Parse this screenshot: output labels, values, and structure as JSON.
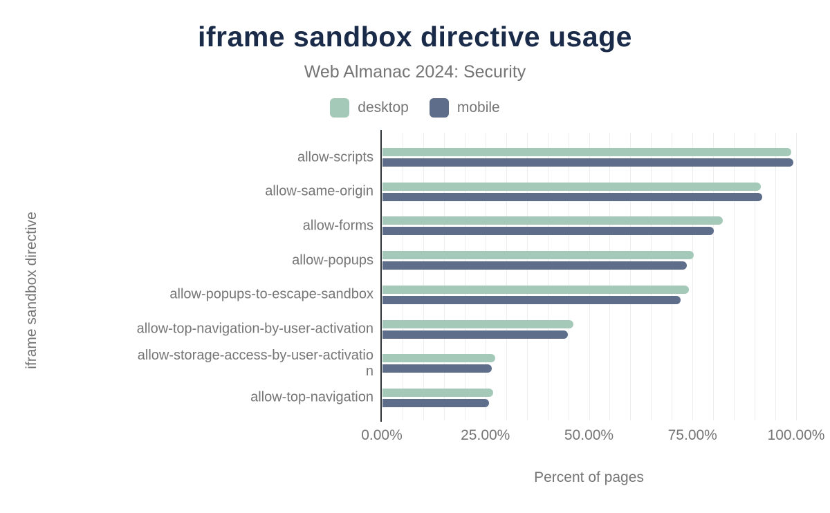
{
  "header": {
    "title": "iframe sandbox directive usage",
    "subtitle": "Web Almanac 2024: Security"
  },
  "legend": {
    "items": [
      {
        "label": "desktop",
        "color": "#a5c9b8"
      },
      {
        "label": "mobile",
        "color": "#5e6e8a"
      }
    ]
  },
  "axes": {
    "x_title": "Percent of pages",
    "y_title": "iframe sandbox directive"
  },
  "chart_data": {
    "type": "bar",
    "orientation": "horizontal",
    "title": "iframe sandbox directive usage",
    "subtitle": "Web Almanac 2024: Security",
    "xlabel": "Percent of pages",
    "ylabel": "iframe sandbox directive",
    "xlim": [
      0,
      100
    ],
    "x_tick_values": [
      0,
      25,
      50,
      75,
      100
    ],
    "x_tick_labels": [
      "0.00%",
      "25.00%",
      "50.00%",
      "75.00%",
      "100.00%"
    ],
    "grid": {
      "show": true,
      "minor_step_percent": 5,
      "color": "#ededed"
    },
    "legend_position": "top",
    "categories": [
      "allow-scripts",
      "allow-same-origin",
      "allow-forms",
      "allow-popups",
      "allow-popups-to-escape-sandbox",
      "allow-top-navigation-by-user-activation",
      "allow-storage-access-by-user-activation",
      "allow-top-navigation"
    ],
    "category_display_lines": [
      [
        "allow-scripts"
      ],
      [
        "allow-same-origin"
      ],
      [
        "allow-forms"
      ],
      [
        "allow-popups"
      ],
      [
        "allow-popups-to-escape-sandbox"
      ],
      [
        "allow-top-navigation-by-user-activation"
      ],
      [
        "allow-storage-access-by-user-activatio",
        "n"
      ],
      [
        "allow-top-navigation"
      ]
    ],
    "series": [
      {
        "name": "desktop",
        "color": "#a5c9b8",
        "values": [
          98.6,
          91.3,
          82.2,
          75.2,
          74.0,
          46.0,
          27.2,
          26.7
        ]
      },
      {
        "name": "mobile",
        "color": "#5e6e8a",
        "values": [
          99.1,
          91.6,
          79.9,
          73.5,
          72.0,
          44.8,
          26.3,
          25.7
        ]
      }
    ]
  },
  "colors": {
    "title": "#1a2b49",
    "text_muted": "#757575",
    "axis_line": "#2f3438",
    "gridline": "#ededed"
  }
}
